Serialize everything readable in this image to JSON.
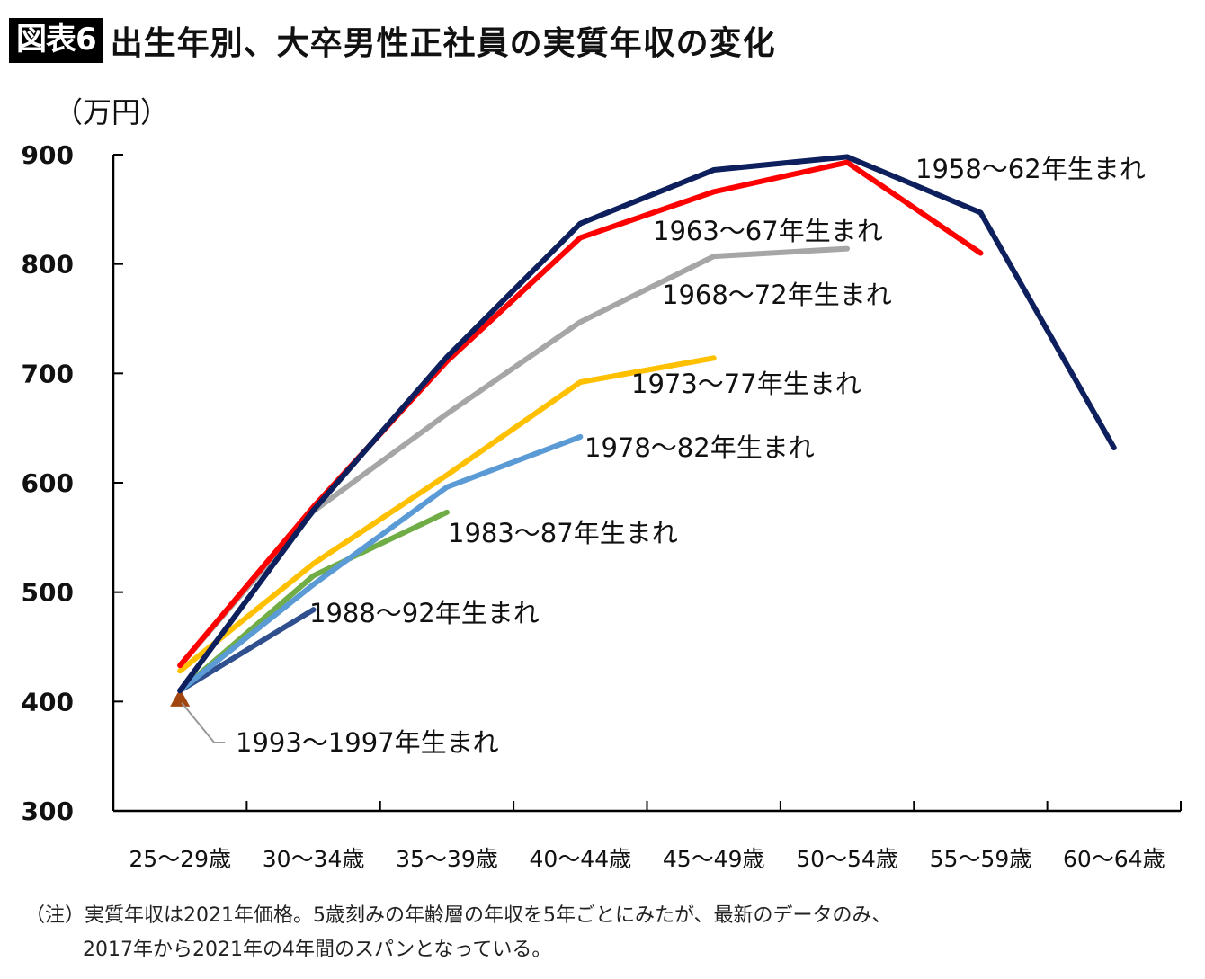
{
  "header": {
    "badge": "図表6",
    "title": "出生年別、大卒男性正社員の実質年収の変化"
  },
  "unit_label": "（万円）",
  "note": {
    "line1": "（注）実質年収は2021年価格。5歳刻みの年齢層の年収を5年ごとにみたが、最新のデータのみ、",
    "line2": "2017年から2021年の4年間のスパンとなっている。"
  },
  "chart_data": {
    "type": "line",
    "title": "出生年別、大卒男性正社員の実質年収の変化",
    "xlabel": "",
    "ylabel": "（万円）",
    "ylim": [
      300,
      900
    ],
    "yticks": [
      300,
      400,
      500,
      600,
      700,
      800,
      900
    ],
    "grid": false,
    "categories": [
      "25〜29歳",
      "30〜34歳",
      "35〜39歳",
      "40〜44歳",
      "45〜49歳",
      "50〜54歳",
      "55〜59歳",
      "60〜64歳"
    ],
    "series": [
      {
        "name": "1958〜62年生まれ",
        "color": "#0d1f5c",
        "values": [
          410,
          575,
          715,
          837,
          886,
          898,
          847,
          632
        ]
      },
      {
        "name": "1963〜67年生まれ",
        "color": "#ff0000",
        "values": [
          433,
          578,
          711,
          824,
          866,
          893,
          810
        ]
      },
      {
        "name": "1968〜72年生まれ",
        "color": "#a6a6a6",
        "values": [
          433,
          574,
          663,
          747,
          807,
          814
        ]
      },
      {
        "name": "1973〜77年生まれ",
        "color": "#ffc000",
        "values": [
          428,
          526,
          607,
          692,
          714
        ]
      },
      {
        "name": "1978〜82年生まれ",
        "color": "#5b9bd5",
        "values": [
          410,
          507,
          596,
          642
        ]
      },
      {
        "name": "1983〜87年生まれ",
        "color": "#70ad47",
        "values": [
          410,
          515,
          573
        ]
      },
      {
        "name": "1988〜92年生まれ",
        "color": "#2f4f8f",
        "values": [
          410,
          484
        ]
      },
      {
        "name": "1993〜1997年生まれ",
        "color": "#a0460e",
        "values": [
          402
        ],
        "marker": "triangle"
      }
    ]
  }
}
